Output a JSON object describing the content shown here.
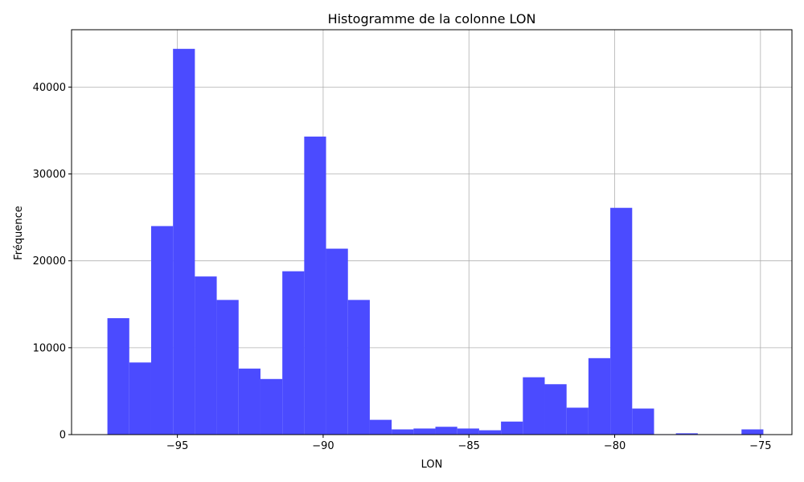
{
  "chart_data": {
    "type": "bar",
    "title": "Histogramme de la colonne LON",
    "xlabel": "LON",
    "ylabel": "Fréquence",
    "xlim": [
      -98.63,
      -73.92
    ],
    "ylim": [
      0,
      46600
    ],
    "grid": true,
    "bar_color": "#4b4bff",
    "bin_edges": [
      -97.4,
      -96.65,
      -95.9,
      -95.15,
      -94.4,
      -93.65,
      -92.9,
      -92.15,
      -91.4,
      -90.65,
      -89.9,
      -89.15,
      -88.4,
      -87.65,
      -86.9,
      -86.15,
      -85.4,
      -84.65,
      -83.9,
      -83.15,
      -82.4,
      -81.65,
      -80.9,
      -80.15,
      -79.4,
      -78.65,
      -77.9,
      -77.15,
      -76.4,
      -75.65,
      -74.9
    ],
    "values": [
      13400,
      8300,
      24000,
      44400,
      18200,
      15500,
      7600,
      6400,
      18800,
      34300,
      21400,
      15500,
      1700,
      600,
      700,
      900,
      700,
      500,
      1500,
      6600,
      5800,
      3100,
      8800,
      26100,
      3000,
      50,
      150,
      50,
      50,
      600
    ],
    "x_ticks": [
      {
        "value": -95,
        "label": "−95"
      },
      {
        "value": -90,
        "label": "−90"
      },
      {
        "value": -85,
        "label": "−85"
      },
      {
        "value": -80,
        "label": "−80"
      },
      {
        "value": -75,
        "label": "−75"
      }
    ],
    "y_ticks": [
      {
        "value": 0,
        "label": "0"
      },
      {
        "value": 10000,
        "label": "10000"
      },
      {
        "value": 20000,
        "label": "20000"
      },
      {
        "value": 30000,
        "label": "30000"
      },
      {
        "value": 40000,
        "label": "40000"
      }
    ]
  }
}
